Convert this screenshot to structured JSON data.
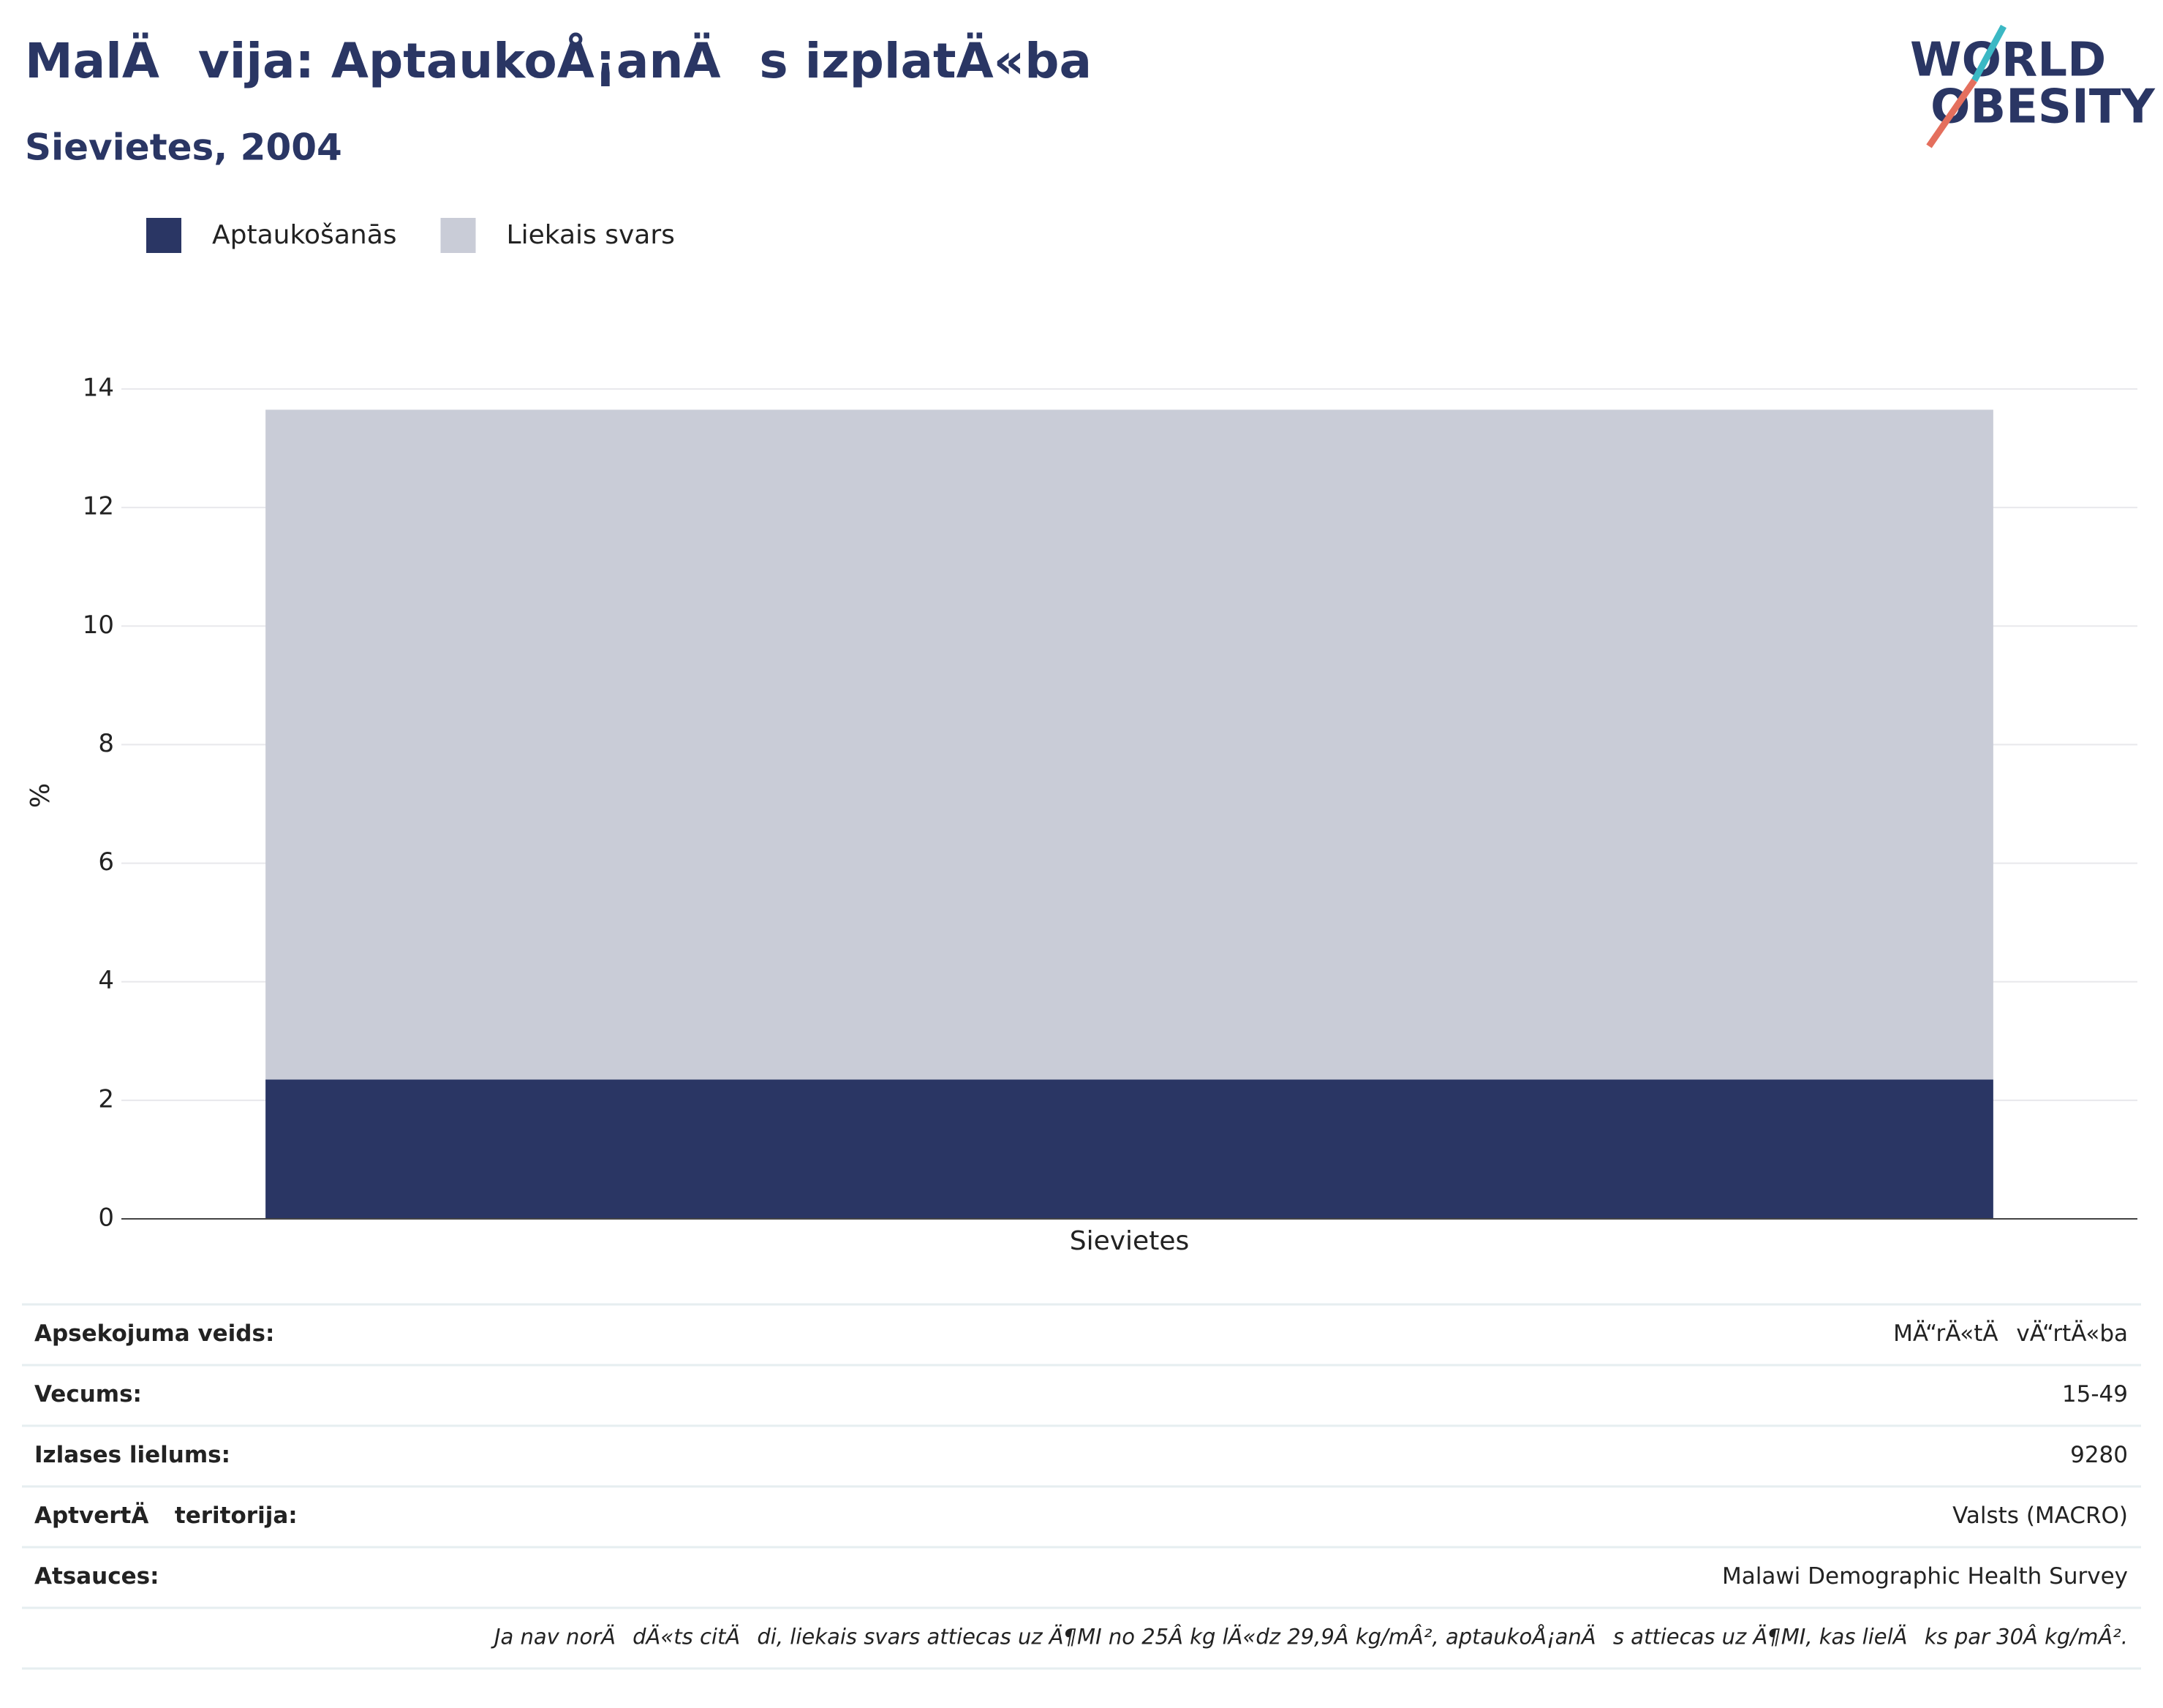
{
  "chart_data": {
    "type": "stacked_bar",
    "title": "MalÄvija: AptaukoÅ¡anÄs izplatÄ«ba",
    "subtitle": "Sievietes, 2004",
    "y_label": "%",
    "categories": [
      "Sievietes"
    ],
    "series": [
      {
        "name": "Aptaukošanās",
        "color": "#2a3664",
        "values": [
          2.35
        ]
      },
      {
        "name": "Liekais svars",
        "color": "#c9ccd7",
        "values": [
          11.3
        ]
      }
    ],
    "ylim": [
      0,
      14
    ],
    "yticks": [
      0,
      2,
      4,
      6,
      8,
      10,
      12,
      14
    ],
    "grid": true,
    "legend": "top-left"
  },
  "logo": {
    "line1": "WORLD",
    "line2": "OBESITY"
  },
  "table": {
    "rows": [
      [
        "Apsekojuma veids:",
        "MÄ“rÄ«tÄvÄ“rtÄ«ba"
      ],
      [
        "Vecums:",
        "15-49"
      ],
      [
        "Izlases lielums:",
        "9280"
      ],
      [
        "AptvertÄ teritorija:",
        "Valsts (MACRO)"
      ],
      [
        "Atsauces:",
        "Malawi Demographic Health Survey"
      ]
    ],
    "note": "Ja nav norÄdÄ«ts citÄdi, liekais svars attiecas uz Ä¶MI no 25Â kg lÄ«dz 29,9Â kg/mÂ², aptaukoÅ¡anÄs attiecas uz Ä¶MI, kas lielÄks par 30Â kg/mÂ²."
  }
}
